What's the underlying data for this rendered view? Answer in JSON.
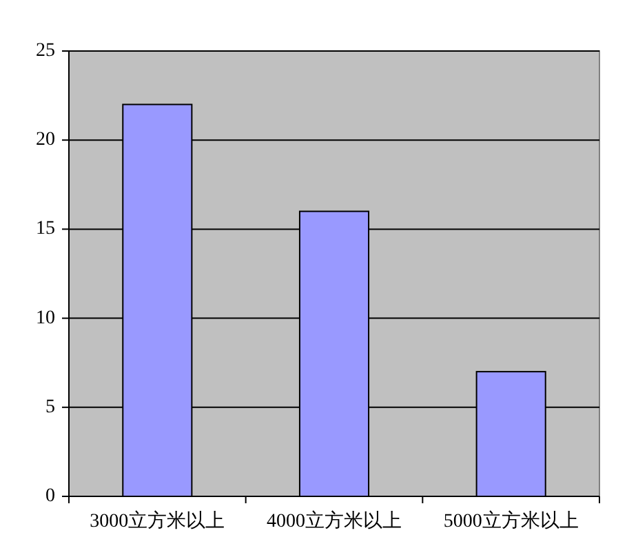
{
  "chart_data": {
    "type": "bar",
    "categories": [
      "3000立方米以上",
      "4000立方米以上",
      "5000立方米以上"
    ],
    "values": [
      22,
      16,
      7
    ],
    "color": "#9999ff",
    "ylim": [
      0,
      25
    ],
    "yticks": [
      0,
      5,
      10,
      15,
      20,
      25
    ],
    "grid": "y"
  }
}
